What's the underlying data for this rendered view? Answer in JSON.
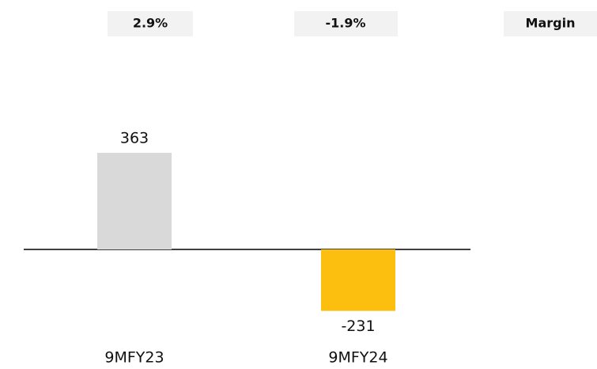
{
  "chart_data": {
    "type": "bar",
    "categories": [
      "9MFY23",
      "9MFY24"
    ],
    "values": [
      363,
      -231
    ],
    "colors": [
      "#d9d9d9",
      "#fcbf10"
    ],
    "margin": {
      "label": "Margin",
      "values": [
        "2.9%",
        "-1.9%"
      ]
    }
  }
}
